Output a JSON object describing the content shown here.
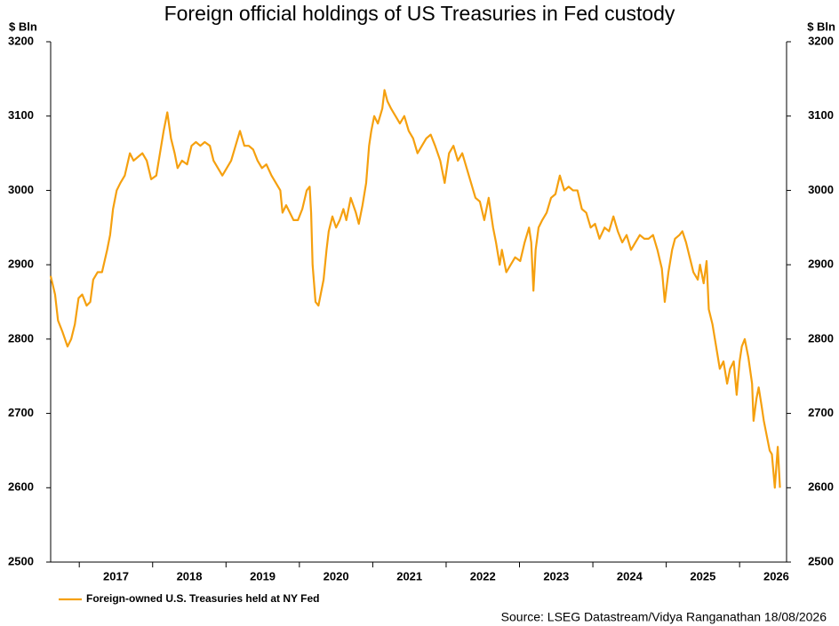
{
  "chart_data": {
    "type": "line",
    "title": "Foreign official holdings of US Treasuries in Fed custody",
    "ylabel": "$ Bln",
    "y2label": "$ Bln",
    "source": "Source: LSEG Datastream/Vidya Ranganathan 18/08/2026",
    "xlim": [
      2016.61,
      2026.64
    ],
    "xticks": [
      2017,
      2018,
      2019,
      2020,
      2021,
      2022,
      2023,
      2024,
      2025,
      2026
    ],
    "ylim": [
      2500,
      3200
    ],
    "yticks": [
      2500,
      2600,
      2700,
      2800,
      2900,
      3000,
      3100,
      3200
    ],
    "y2lim": [
      2500,
      3200
    ],
    "y2ticks": [
      2500,
      2600,
      2700,
      2800,
      2900,
      3000,
      3100,
      3200
    ],
    "legend": "bottom-left",
    "series": [
      {
        "name": "Foreign-owned U.S. Treasuries held at NY Fed",
        "color": "#f5a00f",
        "x": [
          2016.61,
          2016.67,
          2016.71,
          2016.77,
          2016.84,
          2016.89,
          2016.94,
          2016.99,
          2017.04,
          2017.1,
          2017.15,
          2017.19,
          2017.25,
          2017.31,
          2017.38,
          2017.42,
          2017.46,
          2017.51,
          2017.56,
          2017.62,
          2017.69,
          2017.74,
          2017.8,
          2017.86,
          2017.92,
          2017.98,
          2018.05,
          2018.1,
          2018.15,
          2018.2,
          2018.25,
          2018.3,
          2018.34,
          2018.4,
          2018.47,
          2018.53,
          2018.59,
          2018.65,
          2018.71,
          2018.78,
          2018.83,
          2018.89,
          2018.95,
          2019.01,
          2019.07,
          2019.13,
          2019.19,
          2019.25,
          2019.31,
          2019.37,
          2019.43,
          2019.49,
          2019.55,
          2019.62,
          2019.68,
          2019.74,
          2019.77,
          2019.82,
          2019.87,
          2019.92,
          2019.98,
          2020.04,
          2020.1,
          2020.14,
          2020.16,
          2020.18,
          2020.22,
          2020.26,
          2020.29,
          2020.33,
          2020.37,
          2020.4,
          2020.45,
          2020.5,
          2020.55,
          2020.6,
          2020.64,
          2020.7,
          2020.77,
          2020.81,
          2020.86,
          2020.91,
          2020.95,
          2020.98,
          2021.02,
          2021.07,
          2021.13,
          2021.16,
          2021.2,
          2021.25,
          2021.31,
          2021.37,
          2021.43,
          2021.49,
          2021.55,
          2021.61,
          2021.67,
          2021.73,
          2021.79,
          2021.85,
          2021.92,
          2021.98,
          2022.04,
          2022.1,
          2022.16,
          2022.22,
          2022.28,
          2022.34,
          2022.4,
          2022.46,
          2022.52,
          2022.58,
          2022.64,
          2022.68,
          2022.73,
          2022.76,
          2022.82,
          2022.88,
          2022.94,
          2023.01,
          2023.07,
          2023.13,
          2023.16,
          2023.19,
          2023.22,
          2023.26,
          2023.31,
          2023.37,
          2023.43,
          2023.49,
          2023.55,
          2023.61,
          2023.67,
          2023.73,
          2023.79,
          2023.85,
          2023.91,
          2023.97,
          2024.03,
          2024.09,
          2024.16,
          2024.22,
          2024.28,
          2024.34,
          2024.4,
          2024.46,
          2024.52,
          2024.58,
          2024.64,
          2024.7,
          2024.76,
          2024.82,
          2024.88,
          2024.94,
          2024.98,
          2025.03,
          2025.08,
          2025.12,
          2025.18,
          2025.22,
          2025.27,
          2025.32,
          2025.37,
          2025.43,
          2025.46,
          2025.51,
          2025.55,
          2025.58,
          2025.63,
          2025.68,
          2025.73,
          2025.78,
          2025.83,
          2025.87,
          2025.92,
          2025.96,
          2026.0,
          2026.03,
          2026.07,
          2026.12,
          2026.17,
          2026.19,
          2026.23,
          2026.26,
          2026.3,
          2026.33,
          2026.37,
          2026.41,
          2026.44,
          2026.48,
          2026.52,
          2026.55
        ],
        "values": [
          2885,
          2860,
          2825,
          2810,
          2790,
          2800,
          2820,
          2855,
          2860,
          2845,
          2850,
          2880,
          2890,
          2890,
          2920,
          2940,
          2975,
          3000,
          3010,
          3020,
          3050,
          3040,
          3045,
          3050,
          3040,
          3015,
          3020,
          3050,
          3080,
          3105,
          3070,
          3050,
          3030,
          3040,
          3035,
          3060,
          3065,
          3060,
          3065,
          3060,
          3040,
          3030,
          3020,
          3030,
          3040,
          3060,
          3080,
          3060,
          3060,
          3055,
          3040,
          3030,
          3035,
          3020,
          3010,
          3000,
          2970,
          2980,
          2970,
          2960,
          2960,
          2975,
          3000,
          3005,
          2970,
          2900,
          2850,
          2845,
          2860,
          2880,
          2920,
          2945,
          2965,
          2950,
          2960,
          2975,
          2960,
          2990,
          2970,
          2955,
          2980,
          3010,
          3060,
          3080,
          3100,
          3090,
          3110,
          3135,
          3120,
          3110,
          3100,
          3090,
          3100,
          3080,
          3070,
          3050,
          3060,
          3070,
          3075,
          3060,
          3040,
          3010,
          3050,
          3060,
          3040,
          3050,
          3030,
          3010,
          2990,
          2985,
          2960,
          2990,
          2950,
          2930,
          2900,
          2920,
          2890,
          2900,
          2910,
          2905,
          2930,
          2950,
          2930,
          2865,
          2920,
          2950,
          2960,
          2970,
          2990,
          2995,
          3020,
          3000,
          3005,
          3000,
          3000,
          2975,
          2970,
          2950,
          2955,
          2935,
          2950,
          2945,
          2965,
          2945,
          2930,
          2940,
          2920,
          2930,
          2940,
          2935,
          2935,
          2940,
          2920,
          2895,
          2850,
          2890,
          2920,
          2935,
          2940,
          2945,
          2930,
          2910,
          2890,
          2880,
          2900,
          2875,
          2905,
          2840,
          2820,
          2790,
          2760,
          2770,
          2740,
          2760,
          2770,
          2725,
          2770,
          2790,
          2800,
          2775,
          2740,
          2690,
          2720,
          2735,
          2710,
          2690,
          2670,
          2650,
          2645,
          2600,
          2655,
          2600
        ]
      }
    ]
  }
}
